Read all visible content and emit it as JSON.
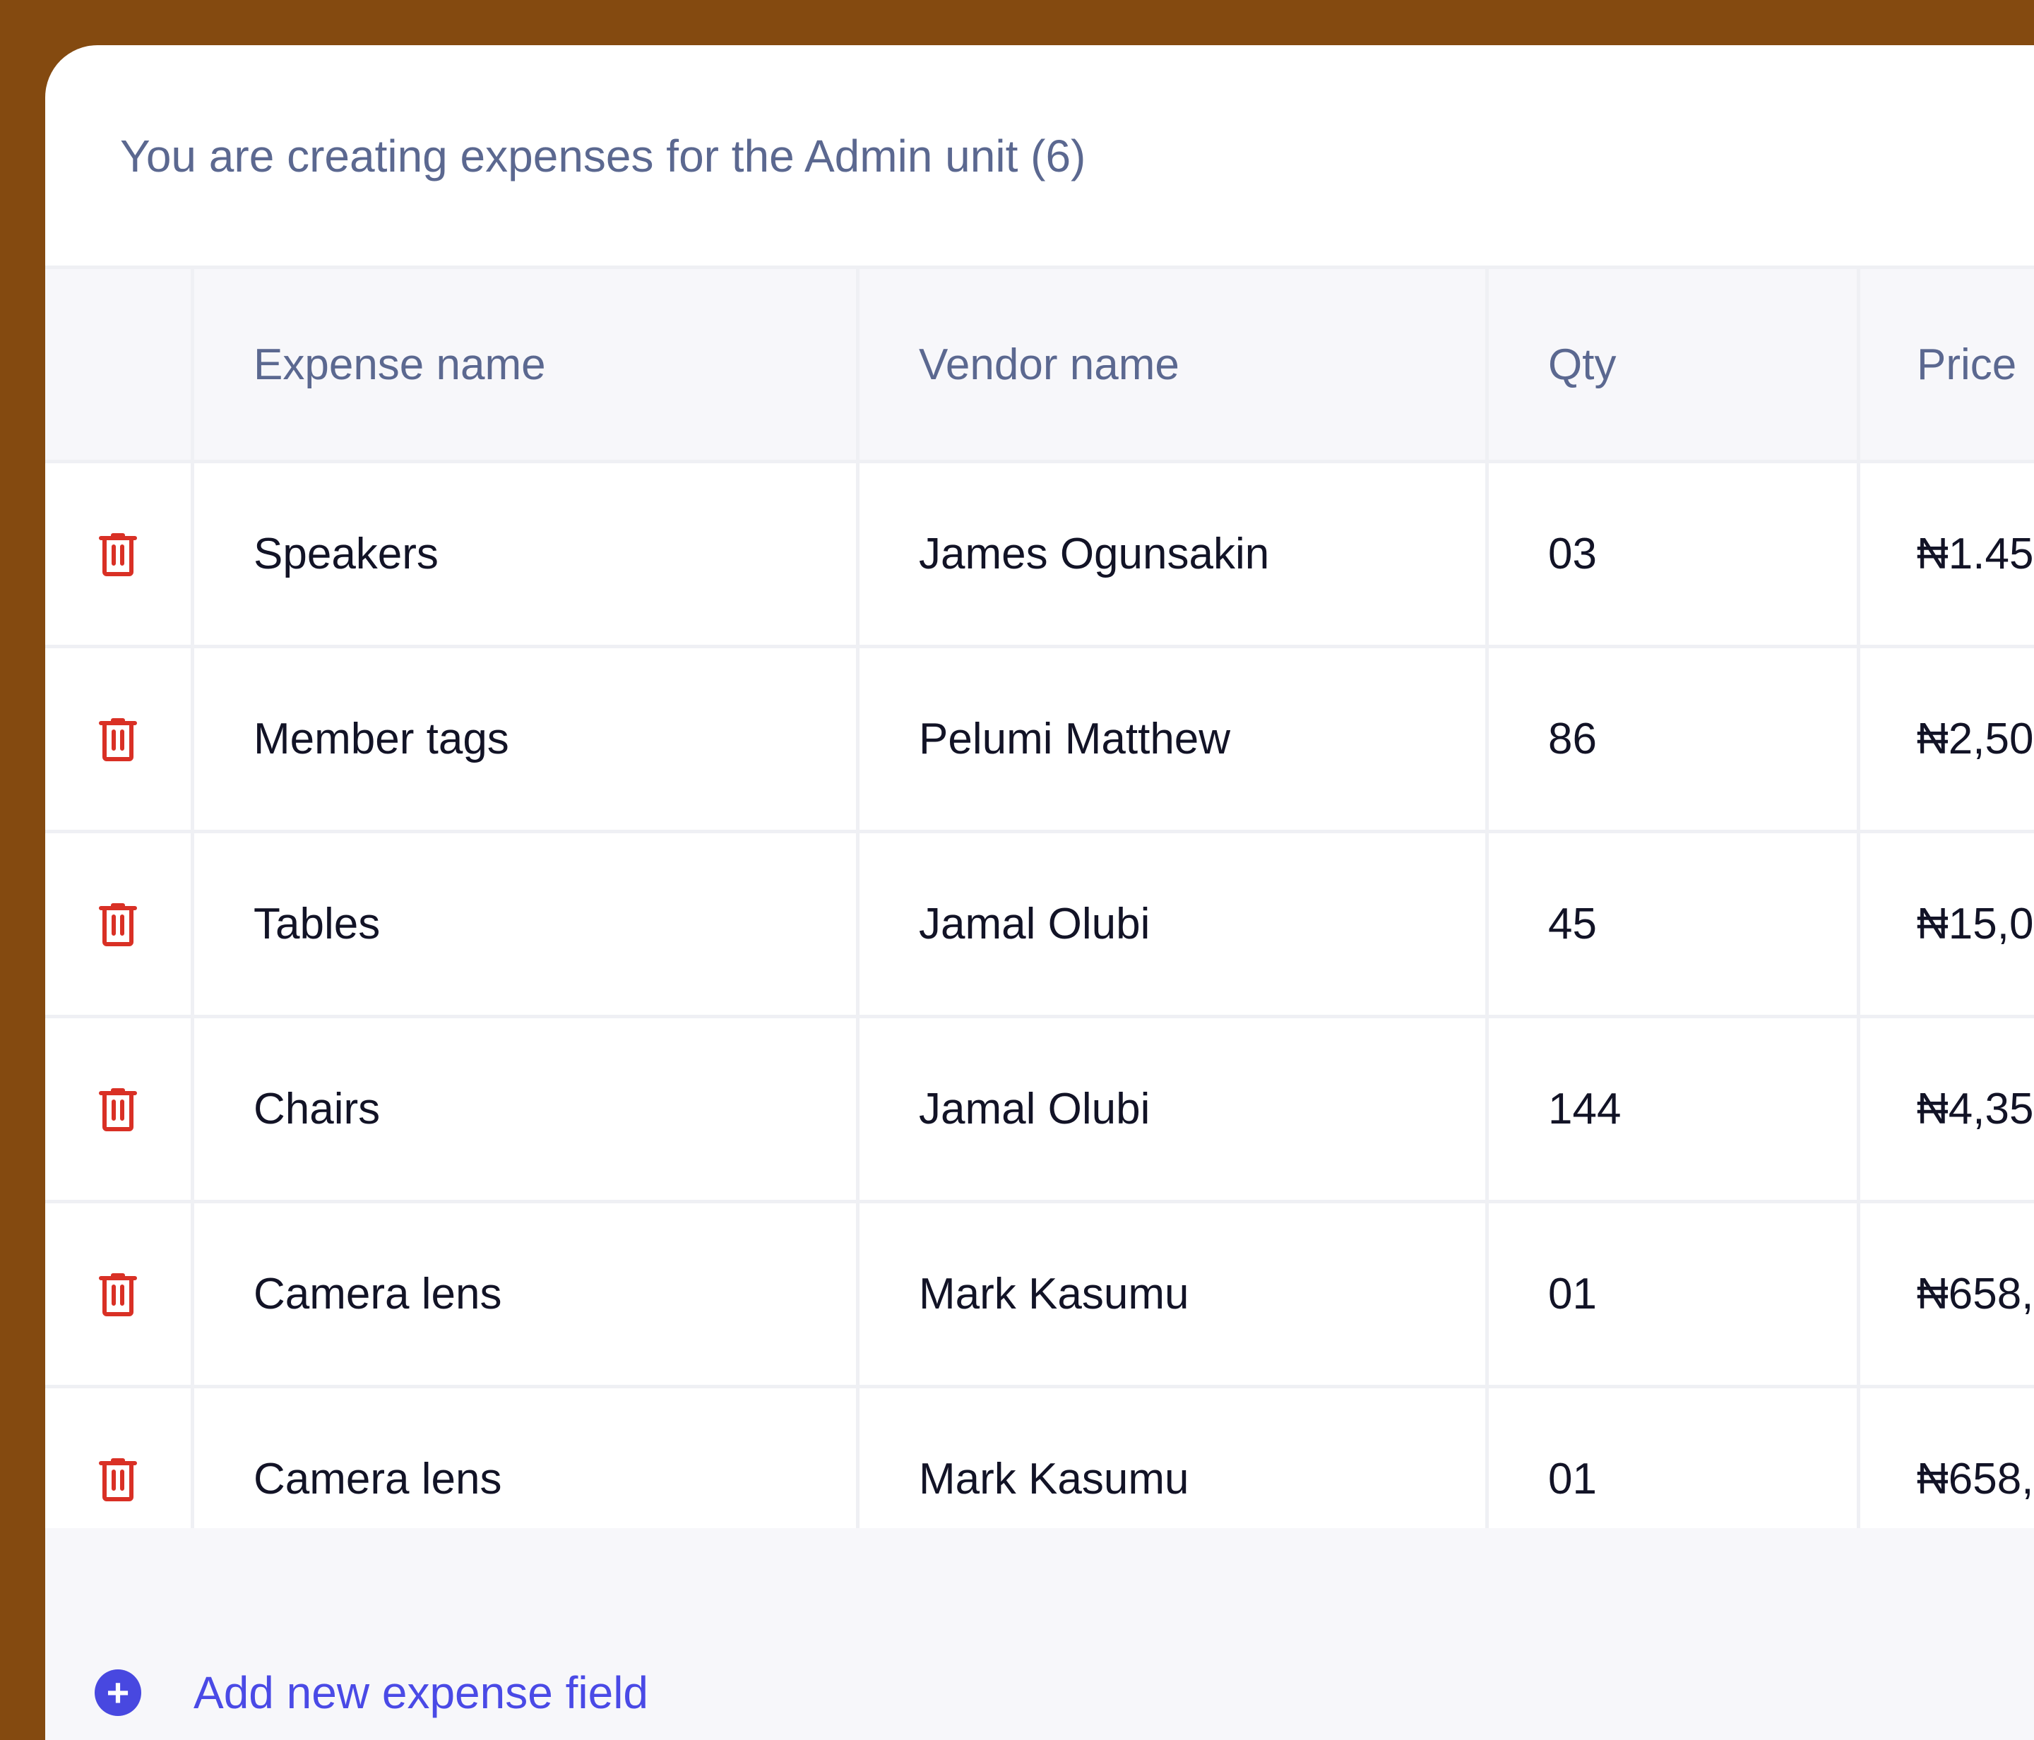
{
  "header": {
    "subtitle": "You are creating expenses for the Admin unit (6)"
  },
  "table": {
    "columns": [
      "Expense name",
      "Vendor name",
      "Qty",
      "Price"
    ],
    "rows": [
      {
        "name": "Speakers",
        "vendor": "James Ogunsakin",
        "qty": "03",
        "price": "₦1.45"
      },
      {
        "name": "Member tags",
        "vendor": "Pelumi Matthew",
        "qty": "86",
        "price": "₦2,50"
      },
      {
        "name": "Tables",
        "vendor": "Jamal Olubi",
        "qty": "45",
        "price": "₦15,0"
      },
      {
        "name": "Chairs",
        "vendor": "Jamal Olubi",
        "qty": "144",
        "price": "₦4,35"
      },
      {
        "name": "Camera lens",
        "vendor": "Mark Kasumu",
        "qty": "01",
        "price": "₦658,"
      },
      {
        "name": "Camera lens",
        "vendor": "Mark Kasumu",
        "qty": "01",
        "price": "₦658,"
      }
    ]
  },
  "footer": {
    "add_label": "Add new expense field",
    "add_icon": "plus-circle-icon"
  },
  "colors": {
    "frame": "#844a10",
    "delete": "#d93025",
    "accent": "#4848e0",
    "header_text": "#5b6890"
  },
  "icons": {
    "row_action": "trash-icon"
  }
}
